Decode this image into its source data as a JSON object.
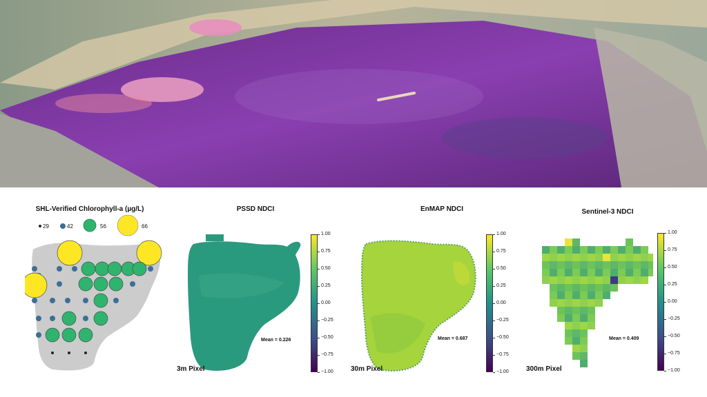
{
  "photo": {
    "icon": "purple-algae-riverbed-photo"
  },
  "chart_data": [
    {
      "type": "scatter",
      "title": "SHL-Verified Chlorophyll-a (µg/L)",
      "legend": [
        {
          "label": "29",
          "value": 29,
          "color": "#222222"
        },
        {
          "label": "42",
          "value": 42,
          "color": "#3b6f98"
        },
        {
          "label": "56",
          "value": 56,
          "color": "#2fb46e"
        },
        {
          "label": "66",
          "value": 66,
          "color": "#fde725"
        }
      ],
      "legend_placement": "top"
    },
    {
      "type": "heatmap",
      "title": "PSSD NDCI",
      "mean_text": "Mean =  0.226",
      "resolution_text": "3m Pixel",
      "clim": [
        -1.0,
        1.0
      ],
      "colorbar_ticks": [
        "1.00",
        "0.75",
        "0.50",
        "0.25",
        "0.00",
        "−0.25",
        "−0.50",
        "−0.75",
        "−1.00"
      ]
    },
    {
      "type": "heatmap",
      "title": "EnMAP NDCI",
      "mean_text": "Mean =  0.687",
      "resolution_text": "30m Pixel",
      "clim": [
        -1.0,
        1.0
      ],
      "colorbar_ticks": [
        "1.00",
        "0.75",
        "0.50",
        "0.25",
        "0.00",
        "−0.25",
        "−0.50",
        "−0.75",
        "−1.00"
      ]
    },
    {
      "type": "heatmap",
      "title": "Sentinel-3 NDCI",
      "mean_text": "Mean =  0.409",
      "resolution_text": "300m Pixel",
      "clim": [
        -1.0,
        1.0
      ],
      "colorbar_ticks": [
        "1.00",
        "0.75",
        "0.50",
        "0.25",
        "0.00",
        "−0.25",
        "−0.50",
        "−0.75",
        "−1.00"
      ]
    }
  ],
  "colors": {
    "lake_gray": "#cccccc",
    "pssd_fill": "#2a9a7e",
    "enmap_fill": "#a6d43c",
    "sentinel_fill": "#7ccb55"
  }
}
